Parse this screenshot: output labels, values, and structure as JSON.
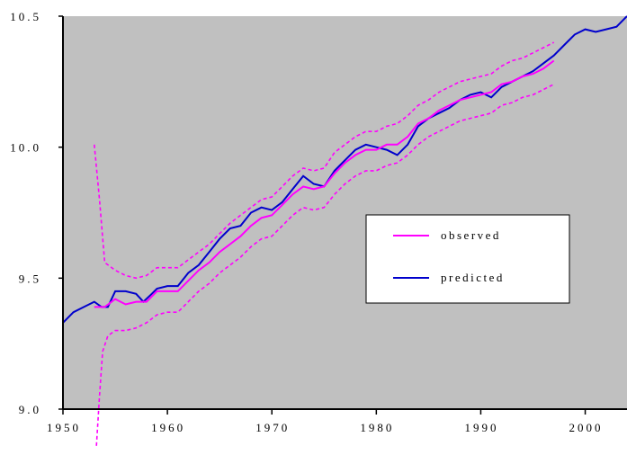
{
  "chart_data": {
    "type": "line",
    "title": "",
    "xlabel": "",
    "ylabel": "",
    "xlim": [
      1950,
      2004
    ],
    "ylim": [
      9.0,
      10.5
    ],
    "grid": false,
    "plot_background": "#c0c0c0",
    "legend_placement": "center-right",
    "x_ticks": [
      {
        "value": 1950,
        "label": "1950"
      },
      {
        "value": 1960,
        "label": "1960"
      },
      {
        "value": 1970,
        "label": "1970"
      },
      {
        "value": 1980,
        "label": "1980"
      },
      {
        "value": 1990,
        "label": "1990"
      },
      {
        "value": 2000,
        "label": "2000"
      }
    ],
    "y_ticks": [
      {
        "value": 9.0,
        "label": "9.0"
      },
      {
        "value": 9.5,
        "label": "9.5"
      },
      {
        "value": 10.0,
        "label": "10.0"
      },
      {
        "value": 10.5,
        "label": "10.5"
      }
    ],
    "series": [
      {
        "name": "predicted",
        "color": "#0000cc",
        "style": "solid",
        "points": [
          [
            1950,
            9.33
          ],
          [
            1951,
            9.37
          ],
          [
            1952,
            9.39
          ],
          [
            1953,
            9.41
          ],
          [
            1953.7,
            9.39
          ],
          [
            1954.3,
            9.39
          ],
          [
            1955,
            9.45
          ],
          [
            1956,
            9.45
          ],
          [
            1957,
            9.44
          ],
          [
            1957.7,
            9.41
          ],
          [
            1958.5,
            9.44
          ],
          [
            1959,
            9.46
          ],
          [
            1960,
            9.47
          ],
          [
            1961,
            9.47
          ],
          [
            1962,
            9.52
          ],
          [
            1963,
            9.55
          ],
          [
            1964,
            9.6
          ],
          [
            1965,
            9.65
          ],
          [
            1966,
            9.69
          ],
          [
            1967,
            9.7
          ],
          [
            1968,
            9.75
          ],
          [
            1969,
            9.77
          ],
          [
            1970,
            9.76
          ],
          [
            1971,
            9.79
          ],
          [
            1972,
            9.84
          ],
          [
            1973,
            9.89
          ],
          [
            1974,
            9.86
          ],
          [
            1975,
            9.85
          ],
          [
            1976,
            9.91
          ],
          [
            1977,
            9.95
          ],
          [
            1978,
            9.99
          ],
          [
            1979,
            10.01
          ],
          [
            1980,
            10.0
          ],
          [
            1981,
            9.99
          ],
          [
            1982,
            9.97
          ],
          [
            1983,
            10.01
          ],
          [
            1984,
            10.08
          ],
          [
            1985,
            10.11
          ],
          [
            1986,
            10.13
          ],
          [
            1987,
            10.15
          ],
          [
            1988,
            10.18
          ],
          [
            1989,
            10.2
          ],
          [
            1990,
            10.21
          ],
          [
            1991,
            10.19
          ],
          [
            1992,
            10.23
          ],
          [
            1993,
            10.25
          ],
          [
            1994,
            10.27
          ],
          [
            1995,
            10.29
          ],
          [
            1996,
            10.32
          ],
          [
            1997,
            10.35
          ],
          [
            1998,
            10.39
          ],
          [
            1999,
            10.43
          ],
          [
            2000,
            10.45
          ],
          [
            2001,
            10.44
          ],
          [
            2002,
            10.45
          ],
          [
            2003,
            10.46
          ],
          [
            2004,
            10.5
          ]
        ]
      },
      {
        "name": "observed",
        "color": "#ff00ff",
        "style": "solid",
        "points": [
          [
            1953,
            9.39
          ],
          [
            1954,
            9.39
          ],
          [
            1955,
            9.42
          ],
          [
            1956,
            9.4
          ],
          [
            1957,
            9.41
          ],
          [
            1958,
            9.41
          ],
          [
            1959,
            9.45
          ],
          [
            1960,
            9.45
          ],
          [
            1961,
            9.45
          ],
          [
            1962,
            9.49
          ],
          [
            1963,
            9.53
          ],
          [
            1964,
            9.56
          ],
          [
            1965,
            9.6
          ],
          [
            1966,
            9.63
          ],
          [
            1967,
            9.66
          ],
          [
            1968,
            9.7
          ],
          [
            1969,
            9.73
          ],
          [
            1970,
            9.74
          ],
          [
            1971,
            9.78
          ],
          [
            1972,
            9.82
          ],
          [
            1973,
            9.85
          ],
          [
            1974,
            9.84
          ],
          [
            1975,
            9.85
          ],
          [
            1976,
            9.9
          ],
          [
            1977,
            9.94
          ],
          [
            1978,
            9.97
          ],
          [
            1979,
            9.99
          ],
          [
            1980,
            9.99
          ],
          [
            1981,
            10.01
          ],
          [
            1982,
            10.01
          ],
          [
            1983,
            10.04
          ],
          [
            1984,
            10.09
          ],
          [
            1985,
            10.11
          ],
          [
            1986,
            10.14
          ],
          [
            1987,
            10.16
          ],
          [
            1988,
            10.18
          ],
          [
            1989,
            10.19
          ],
          [
            1990,
            10.2
          ],
          [
            1991,
            10.21
          ],
          [
            1992,
            10.24
          ],
          [
            1993,
            10.25
          ],
          [
            1994,
            10.27
          ],
          [
            1995,
            10.28
          ],
          [
            1996,
            10.3
          ],
          [
            1997,
            10.33
          ]
        ]
      },
      {
        "name": "",
        "color": "#ff00ff",
        "style": "dashed",
        "points": [
          [
            1953,
            10.01
          ],
          [
            1953.5,
            9.8
          ],
          [
            1954,
            9.56
          ],
          [
            1955,
            9.53
          ],
          [
            1956,
            9.51
          ],
          [
            1957,
            9.5
          ],
          [
            1958,
            9.51
          ],
          [
            1959,
            9.54
          ],
          [
            1960,
            9.54
          ],
          [
            1961,
            9.54
          ],
          [
            1962,
            9.57
          ],
          [
            1963,
            9.6
          ],
          [
            1964,
            9.63
          ],
          [
            1965,
            9.67
          ],
          [
            1966,
            9.71
          ],
          [
            1967,
            9.74
          ],
          [
            1968,
            9.77
          ],
          [
            1969,
            9.8
          ],
          [
            1970,
            9.81
          ],
          [
            1971,
            9.85
          ],
          [
            1972,
            9.89
          ],
          [
            1973,
            9.92
          ],
          [
            1974,
            9.91
          ],
          [
            1975,
            9.92
          ],
          [
            1976,
            9.98
          ],
          [
            1977,
            10.01
          ],
          [
            1978,
            10.04
          ],
          [
            1979,
            10.06
          ],
          [
            1980,
            10.06
          ],
          [
            1981,
            10.08
          ],
          [
            1982,
            10.09
          ],
          [
            1983,
            10.12
          ],
          [
            1984,
            10.16
          ],
          [
            1985,
            10.18
          ],
          [
            1986,
            10.21
          ],
          [
            1987,
            10.23
          ],
          [
            1988,
            10.25
          ],
          [
            1989,
            10.26
          ],
          [
            1990,
            10.27
          ],
          [
            1991,
            10.28
          ],
          [
            1992,
            10.31
          ],
          [
            1993,
            10.33
          ],
          [
            1994,
            10.34
          ],
          [
            1995,
            10.36
          ],
          [
            1996,
            10.38
          ],
          [
            1997,
            10.4
          ]
        ]
      },
      {
        "name": "",
        "color": "#ff00ff",
        "style": "dashed",
        "points": [
          [
            1953.2,
            8.86
          ],
          [
            1953.5,
            9.05
          ],
          [
            1953.8,
            9.22
          ],
          [
            1954.3,
            9.28
          ],
          [
            1955,
            9.3
          ],
          [
            1956,
            9.3
          ],
          [
            1957,
            9.31
          ],
          [
            1958,
            9.33
          ],
          [
            1959,
            9.36
          ],
          [
            1960,
            9.37
          ],
          [
            1961,
            9.37
          ],
          [
            1962,
            9.41
          ],
          [
            1963,
            9.45
          ],
          [
            1964,
            9.48
          ],
          [
            1965,
            9.52
          ],
          [
            1966,
            9.55
          ],
          [
            1967,
            9.58
          ],
          [
            1968,
            9.62
          ],
          [
            1969,
            9.65
          ],
          [
            1970,
            9.66
          ],
          [
            1971,
            9.7
          ],
          [
            1972,
            9.74
          ],
          [
            1973,
            9.77
          ],
          [
            1974,
            9.76
          ],
          [
            1975,
            9.77
          ],
          [
            1976,
            9.82
          ],
          [
            1977,
            9.86
          ],
          [
            1978,
            9.89
          ],
          [
            1979,
            9.91
          ],
          [
            1980,
            9.91
          ],
          [
            1981,
            9.93
          ],
          [
            1982,
            9.94
          ],
          [
            1983,
            9.97
          ],
          [
            1984,
            10.01
          ],
          [
            1985,
            10.04
          ],
          [
            1986,
            10.06
          ],
          [
            1987,
            10.08
          ],
          [
            1988,
            10.1
          ],
          [
            1989,
            10.11
          ],
          [
            1990,
            10.12
          ],
          [
            1991,
            10.13
          ],
          [
            1992,
            10.16
          ],
          [
            1993,
            10.17
          ],
          [
            1994,
            10.19
          ],
          [
            1995,
            10.2
          ],
          [
            1996,
            10.22
          ],
          [
            1997,
            10.24
          ]
        ]
      }
    ],
    "legend": [
      {
        "label": "observed",
        "color": "#ff00ff"
      },
      {
        "label": "predicted",
        "color": "#0000cc"
      }
    ]
  }
}
